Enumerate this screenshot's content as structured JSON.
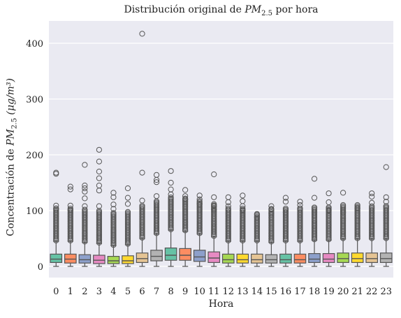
{
  "chart_data": {
    "type": "boxplot",
    "title_prefix": "Distribución original de ",
    "title_symbol": "PM",
    "title_subscript": "2.5",
    "title_suffix": " por hora",
    "xlabel": "Hora",
    "ylabel_prefix": "Concentración de ",
    "ylabel_symbol": "PM",
    "ylabel_subscript": "2.5",
    "ylabel_unit": " (μg/m³)",
    "ylim": [
      -20,
      440
    ],
    "yticks": [
      0,
      100,
      200,
      300,
      400
    ],
    "grid": true,
    "background": "#eaeaf2",
    "categories": [
      "0",
      "1",
      "2",
      "3",
      "4",
      "5",
      "6",
      "7",
      "8",
      "9",
      "10",
      "11",
      "12",
      "13",
      "14",
      "15",
      "16",
      "17",
      "18",
      "19",
      "20",
      "21",
      "22",
      "23"
    ],
    "colors": [
      "#66c2a5",
      "#fc8d62",
      "#8da0cb",
      "#e78ac3",
      "#a6d854",
      "#ffd92f",
      "#e5c494",
      "#b3b3b3"
    ],
    "boxes": [
      {
        "q1": 7,
        "median": 13,
        "q3": 22,
        "whisker_low": 0,
        "whisker_high": 45,
        "outlier_max": 168,
        "outliers_extra": [
          166,
          109,
          104
        ]
      },
      {
        "q1": 6,
        "median": 13,
        "q3": 22,
        "whisker_low": 0,
        "whisker_high": 45,
        "outlier_max": 143,
        "outliers_extra": [
          138,
          109,
          101
        ]
      },
      {
        "q1": 6,
        "median": 12,
        "q3": 21,
        "whisker_low": 0,
        "whisker_high": 43,
        "outlier_max": 182,
        "outliers_extra": [
          145,
          140,
          134,
          122,
          108
        ]
      },
      {
        "q1": 5,
        "median": 11,
        "q3": 20,
        "whisker_low": 0,
        "whisker_high": 41,
        "outlier_max": 209,
        "outliers_extra": [
          188,
          170,
          158,
          145,
          136,
          108
        ]
      },
      {
        "q1": 5,
        "median": 10,
        "q3": 18,
        "whisker_low": 0,
        "whisker_high": 37,
        "outlier_max": 132,
        "outliers_extra": [
          124,
          111,
          103
        ]
      },
      {
        "q1": 5,
        "median": 10,
        "q3": 19,
        "whisker_low": 0,
        "whisker_high": 39,
        "outlier_max": 140,
        "outliers_extra": [
          123,
          112
        ]
      },
      {
        "q1": 7,
        "median": 14,
        "q3": 24,
        "whisker_low": 0,
        "whisker_high": 50,
        "outlier_max": 417,
        "outliers_extra": [
          168,
          118
        ]
      },
      {
        "q1": 10,
        "median": 18,
        "q3": 29,
        "whisker_low": 0,
        "whisker_high": 58,
        "outlier_max": 164,
        "outliers_extra": [
          155,
          151,
          126
        ]
      },
      {
        "q1": 11,
        "median": 20,
        "q3": 33,
        "whisker_low": 0,
        "whisker_high": 65,
        "outlier_max": 171,
        "outliers_extra": [
          150,
          138,
          129
        ]
      },
      {
        "q1": 11,
        "median": 20,
        "q3": 32,
        "whisker_low": 0,
        "whisker_high": 63,
        "outlier_max": 137,
        "outliers_extra": [
          126,
          120
        ]
      },
      {
        "q1": 9,
        "median": 17,
        "q3": 29,
        "whisker_low": 0,
        "whisker_high": 58,
        "outlier_max": 127,
        "outliers_extra": [
          120,
          112
        ]
      },
      {
        "q1": 7,
        "median": 15,
        "q3": 26,
        "whisker_low": 0,
        "whisker_high": 53,
        "outlier_max": 165,
        "outliers_extra": [
          124,
          108,
          102
        ]
      },
      {
        "q1": 6,
        "median": 12,
        "q3": 22,
        "whisker_low": 0,
        "whisker_high": 45,
        "outlier_max": 124,
        "outliers_extra": [
          115,
          108
        ]
      },
      {
        "q1": 6,
        "median": 12,
        "q3": 22,
        "whisker_low": 0,
        "whisker_high": 45,
        "outlier_max": 127,
        "outliers_extra": [
          117,
          108,
          100
        ]
      },
      {
        "q1": 6,
        "median": 12,
        "q3": 22,
        "whisker_low": 0,
        "whisker_high": 45,
        "outlier_max": 94,
        "outliers_extra": [
          88
        ]
      },
      {
        "q1": 6,
        "median": 12,
        "q3": 21,
        "whisker_low": 0,
        "whisker_high": 43,
        "outlier_max": 108,
        "outliers_extra": [
          103,
          95
        ]
      },
      {
        "q1": 6,
        "median": 12,
        "q3": 22,
        "whisker_low": 0,
        "whisker_high": 45,
        "outlier_max": 123,
        "outliers_extra": [
          116,
          97
        ]
      },
      {
        "q1": 6,
        "median": 12,
        "q3": 22,
        "whisker_low": 0,
        "whisker_high": 45,
        "outlier_max": 116,
        "outliers_extra": [
          110,
          104
        ]
      },
      {
        "q1": 7,
        "median": 13,
        "q3": 23,
        "whisker_low": 0,
        "whisker_high": 47,
        "outlier_max": 157,
        "outliers_extra": [
          123,
          97
        ]
      },
      {
        "q1": 7,
        "median": 13,
        "q3": 23,
        "whisker_low": 0,
        "whisker_high": 47,
        "outlier_max": 131,
        "outliers_extra": [
          115,
          100
        ]
      },
      {
        "q1": 7,
        "median": 14,
        "q3": 24,
        "whisker_low": 0,
        "whisker_high": 49,
        "outlier_max": 132,
        "outliers_extra": [
          110,
          97
        ]
      },
      {
        "q1": 7,
        "median": 14,
        "q3": 24,
        "whisker_low": 0,
        "whisker_high": 49,
        "outlier_max": 110,
        "outliers_extra": [
          104
        ]
      },
      {
        "q1": 7,
        "median": 14,
        "q3": 24,
        "whisker_low": 0,
        "whisker_high": 49,
        "outlier_max": 131,
        "outliers_extra": [
          125,
          114
        ]
      },
      {
        "q1": 7,
        "median": 14,
        "q3": 24,
        "whisker_low": 0,
        "whisker_high": 49,
        "outlier_max": 178,
        "outliers_extra": [
          124,
          116,
          108
        ]
      }
    ]
  }
}
